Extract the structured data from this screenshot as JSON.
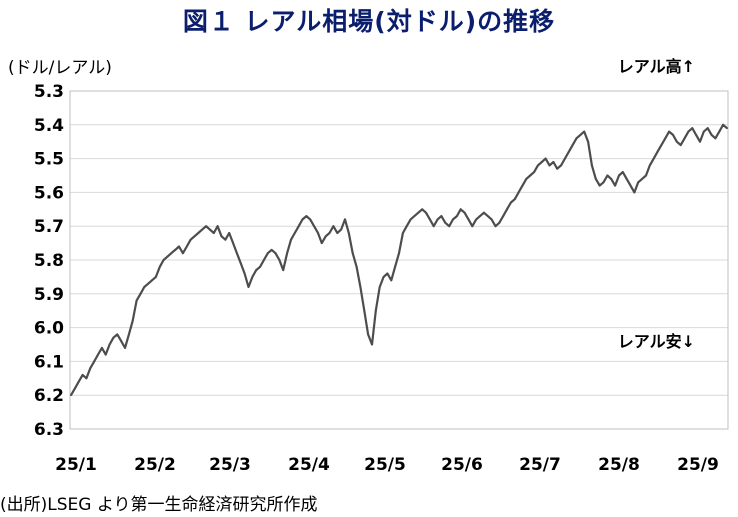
{
  "title": "図１ レアル相場(対ドル)の推移",
  "unit_label": "(ドル/レアル)",
  "annotation_high": "レアル高↑",
  "annotation_low": "レアル安↓",
  "source": "(出所)LSEG より第一生命経済研究所作成",
  "colors": {
    "title": "#0b1e6e",
    "line": "#4d4d4d",
    "grid": "#d9d9d9"
  },
  "chart_data": {
    "type": "line",
    "title": "図１ レアル相場(対ドル)の推移",
    "ylabel": "(ドル/レアル)",
    "xlabel": "",
    "y_inverted": true,
    "ylim": [
      5.3,
      6.3
    ],
    "yticks": [
      "5.3",
      "5.4",
      "5.5",
      "5.6",
      "5.7",
      "5.8",
      "5.9",
      "6.0",
      "6.1",
      "6.2",
      "6.3"
    ],
    "xticks": [
      "25/1",
      "25/2",
      "25/3",
      "25/4",
      "25/5",
      "25/6",
      "25/7",
      "25/8",
      "25/9"
    ],
    "grid": true,
    "series": [
      {
        "values": [
          6.2,
          6.18,
          6.16,
          6.14,
          6.15,
          6.12,
          6.1,
          6.08,
          6.06,
          6.08,
          6.05,
          6.03,
          6.02,
          6.04,
          6.06,
          6.02,
          5.98,
          5.92,
          5.9,
          5.88,
          5.87,
          5.86,
          5.85,
          5.82,
          5.8,
          5.79,
          5.78,
          5.77,
          5.76,
          5.78,
          5.76,
          5.74,
          5.73,
          5.72,
          5.71,
          5.7,
          5.71,
          5.72,
          5.7,
          5.73,
          5.74,
          5.72,
          5.75,
          5.78,
          5.81,
          5.84,
          5.88,
          5.85,
          5.83,
          5.82,
          5.8,
          5.78,
          5.77,
          5.78,
          5.8,
          5.83,
          5.78,
          5.74,
          5.72,
          5.7,
          5.68,
          5.67,
          5.68,
          5.7,
          5.72,
          5.75,
          5.73,
          5.72,
          5.7,
          5.72,
          5.71,
          5.68,
          5.72,
          5.78,
          5.82,
          5.88,
          5.95,
          6.02,
          6.05,
          5.95,
          5.88,
          5.85,
          5.84,
          5.86,
          5.82,
          5.78,
          5.72,
          5.7,
          5.68,
          5.67,
          5.66,
          5.65,
          5.66,
          5.68,
          5.7,
          5.68,
          5.67,
          5.69,
          5.7,
          5.68,
          5.67,
          5.65,
          5.66,
          5.68,
          5.7,
          5.68,
          5.67,
          5.66,
          5.67,
          5.68,
          5.7,
          5.69,
          5.67,
          5.65,
          5.63,
          5.62,
          5.6,
          5.58,
          5.56,
          5.55,
          5.54,
          5.52,
          5.51,
          5.5,
          5.52,
          5.51,
          5.53,
          5.52,
          5.5,
          5.48,
          5.46,
          5.44,
          5.43,
          5.42,
          5.45,
          5.52,
          5.56,
          5.58,
          5.57,
          5.55,
          5.56,
          5.58,
          5.55,
          5.54,
          5.56,
          5.58,
          5.6,
          5.57,
          5.56,
          5.55,
          5.52,
          5.5,
          5.48,
          5.46,
          5.44,
          5.42,
          5.43,
          5.45,
          5.46,
          5.44,
          5.42,
          5.41,
          5.43,
          5.45,
          5.42,
          5.41,
          5.43,
          5.44,
          5.42,
          5.4,
          5.41
        ]
      }
    ]
  }
}
